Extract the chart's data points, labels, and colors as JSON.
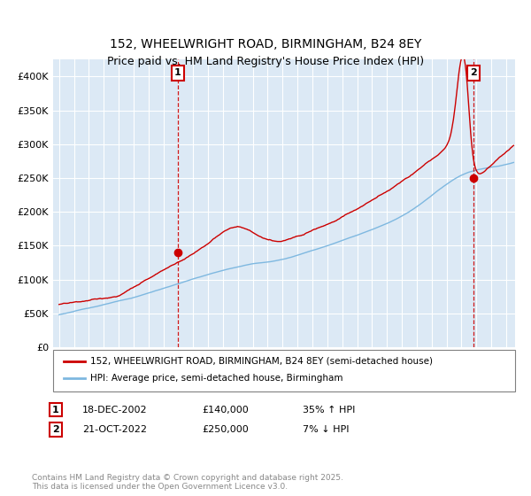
{
  "title": "152, WHEELWRIGHT ROAD, BIRMINGHAM, B24 8EY",
  "subtitle": "Price paid vs. HM Land Registry's House Price Index (HPI)",
  "ylim": [
    0,
    420000
  ],
  "background_color": "#dce9f5",
  "hpi_color": "#7eb8e0",
  "price_color": "#cc0000",
  "dashed_color": "#cc0000",
  "sale1": {
    "date_num": 2002.96,
    "price": 140000,
    "label": "1"
  },
  "sale2": {
    "date_num": 2022.8,
    "price": 250000,
    "label": "2"
  },
  "legend_line1": "152, WHEELWRIGHT ROAD, BIRMINGHAM, B24 8EY (semi-detached house)",
  "legend_line2": "HPI: Average price, semi-detached house, Birmingham",
  "box1_label": "1",
  "box2_label": "2",
  "box1_date": "18-DEC-2002",
  "box2_date": "21-OCT-2022",
  "box1_price": "£140,000",
  "box2_price": "£250,000",
  "box1_hpi": "35% ↑ HPI",
  "box2_hpi": "7% ↓ HPI",
  "footer": "Contains HM Land Registry data © Crown copyright and database right 2025.\nThis data is licensed under the Open Government Licence v3.0."
}
